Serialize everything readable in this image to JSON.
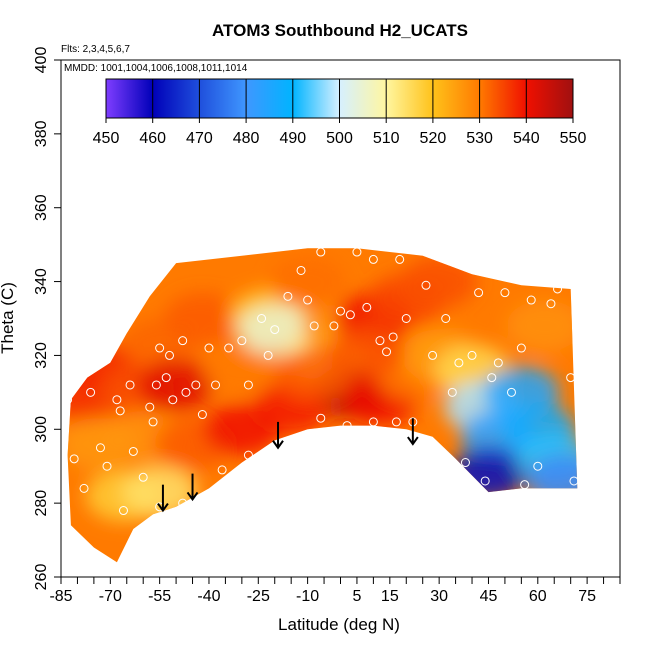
{
  "chart_data": {
    "type": "heatmap",
    "title": "ATOM3 Southbound H2_UCATS",
    "flights_note": "Flts: 2,3,4,5,6,7",
    "mmdd_note": "MMDD: 1001,1004,1006,1008,1011,1014",
    "xlabel": "Latitude (deg N)",
    "ylabel": "Theta (C)",
    "xlim": [
      -85,
      85
    ],
    "ylim": [
      260,
      400
    ],
    "x_ticks": [
      -85,
      -70,
      -55,
      -40,
      -25,
      -10,
      5,
      15,
      30,
      45,
      60,
      75
    ],
    "y_ticks": [
      260,
      280,
      300,
      320,
      340,
      360,
      380,
      400
    ],
    "colorbar": {
      "ticks": [
        450,
        460,
        470,
        480,
        490,
        500,
        510,
        520,
        530,
        540,
        550
      ],
      "range": [
        450,
        550
      ],
      "stops": [
        {
          "v": 450,
          "color": "#7f3dff"
        },
        {
          "v": 460,
          "color": "#0000b8"
        },
        {
          "v": 470,
          "color": "#1f4fdc"
        },
        {
          "v": 480,
          "color": "#3f97ff"
        },
        {
          "v": 490,
          "color": "#00b4ff"
        },
        {
          "v": 500,
          "color": "#d6f0ff"
        },
        {
          "v": 510,
          "color": "#fff6a0"
        },
        {
          "v": 520,
          "color": "#ffc21a"
        },
        {
          "v": 530,
          "color": "#ff7a00"
        },
        {
          "v": 540,
          "color": "#f01000"
        },
        {
          "v": 550,
          "color": "#a01010"
        }
      ]
    },
    "field_boundary": [
      [
        -82,
        308
      ],
      [
        -77,
        314
      ],
      [
        -70,
        318
      ],
      [
        -65,
        326
      ],
      [
        -58,
        336
      ],
      [
        -50,
        345
      ],
      [
        -30,
        347
      ],
      [
        -10,
        349
      ],
      [
        5,
        349
      ],
      [
        15,
        348
      ],
      [
        25,
        347
      ],
      [
        40,
        342
      ],
      [
        55,
        339
      ],
      [
        70,
        338
      ],
      [
        72,
        284
      ],
      [
        55,
        284
      ],
      [
        45,
        283
      ],
      [
        35,
        292
      ],
      [
        28,
        298
      ],
      [
        20,
        300
      ],
      [
        10,
        301
      ],
      [
        0,
        301
      ],
      [
        -10,
        300
      ],
      [
        -20,
        297
      ],
      [
        -30,
        291
      ],
      [
        -40,
        284
      ],
      [
        -50,
        279
      ],
      [
        -57,
        277
      ],
      [
        -63,
        273
      ],
      [
        -68,
        264
      ],
      [
        -75,
        268
      ],
      [
        -82,
        274
      ],
      [
        -83,
        293
      ]
    ],
    "field_samples": [
      {
        "lat": -78,
        "theta": 309,
        "value": 537
      },
      {
        "lat": -72,
        "theta": 316,
        "value": 538
      },
      {
        "lat": -62,
        "theta": 310,
        "value": 534
      },
      {
        "lat": -55,
        "theta": 323,
        "value": 532
      },
      {
        "lat": -50,
        "theta": 312,
        "value": 542
      },
      {
        "lat": -42,
        "theta": 330,
        "value": 533
      },
      {
        "lat": -30,
        "theta": 316,
        "value": 530
      },
      {
        "lat": -22,
        "theta": 331,
        "value": 519
      },
      {
        "lat": -20,
        "theta": 327,
        "value": 505
      },
      {
        "lat": -10,
        "theta": 340,
        "value": 531
      },
      {
        "lat": -5,
        "theta": 320,
        "value": 512
      },
      {
        "lat": 0,
        "theta": 327,
        "value": 527
      },
      {
        "lat": 3,
        "theta": 310,
        "value": 548
      },
      {
        "lat": 10,
        "theta": 330,
        "value": 540
      },
      {
        "lat": 12,
        "theta": 308,
        "value": 540
      },
      {
        "lat": 20,
        "theta": 335,
        "value": 535
      },
      {
        "lat": 22,
        "theta": 315,
        "value": 530
      },
      {
        "lat": 30,
        "theta": 340,
        "value": 534
      },
      {
        "lat": 30,
        "theta": 320,
        "value": 525
      },
      {
        "lat": 40,
        "theta": 316,
        "value": 516
      },
      {
        "lat": 43,
        "theta": 306,
        "value": 498
      },
      {
        "lat": 48,
        "theta": 298,
        "value": 483
      },
      {
        "lat": 45,
        "theta": 288,
        "value": 462
      },
      {
        "lat": 55,
        "theta": 310,
        "value": 485
      },
      {
        "lat": 60,
        "theta": 300,
        "value": 487
      },
      {
        "lat": 65,
        "theta": 292,
        "value": 492
      },
      {
        "lat": 68,
        "theta": 286,
        "value": 478
      },
      {
        "lat": 62,
        "theta": 328,
        "value": 527
      },
      {
        "lat": -60,
        "theta": 298,
        "value": 527
      },
      {
        "lat": -74,
        "theta": 296,
        "value": 526
      },
      {
        "lat": -66,
        "theta": 282,
        "value": 518
      },
      {
        "lat": -55,
        "theta": 283,
        "value": 514
      },
      {
        "lat": -45,
        "theta": 296,
        "value": 533
      },
      {
        "lat": -30,
        "theta": 300,
        "value": 540
      },
      {
        "lat": -15,
        "theta": 306,
        "value": 539
      },
      {
        "lat": -8,
        "theta": 315,
        "value": 533
      },
      {
        "lat": 8,
        "theta": 321,
        "value": 534
      }
    ],
    "observations": [
      {
        "lat": -83,
        "theta": 308
      },
      {
        "lat": -81,
        "theta": 292
      },
      {
        "lat": -78,
        "theta": 284
      },
      {
        "lat": -76,
        "theta": 310
      },
      {
        "lat": -73,
        "theta": 295
      },
      {
        "lat": -71,
        "theta": 290
      },
      {
        "lat": -68,
        "theta": 308
      },
      {
        "lat": -67,
        "theta": 305
      },
      {
        "lat": -64,
        "theta": 312
      },
      {
        "lat": -63,
        "theta": 294
      },
      {
        "lat": -60,
        "theta": 287
      },
      {
        "lat": -58,
        "theta": 306
      },
      {
        "lat": -57,
        "theta": 302
      },
      {
        "lat": -56,
        "theta": 312
      },
      {
        "lat": -55,
        "theta": 322
      },
      {
        "lat": -53,
        "theta": 314
      },
      {
        "lat": -52,
        "theta": 320
      },
      {
        "lat": -51,
        "theta": 308
      },
      {
        "lat": -48,
        "theta": 324
      },
      {
        "lat": -47,
        "theta": 310
      },
      {
        "lat": -44,
        "theta": 312
      },
      {
        "lat": -42,
        "theta": 304
      },
      {
        "lat": -40,
        "theta": 322
      },
      {
        "lat": -38,
        "theta": 312
      },
      {
        "lat": -34,
        "theta": 322
      },
      {
        "lat": -30,
        "theta": 324
      },
      {
        "lat": -28,
        "theta": 312
      },
      {
        "lat": -24,
        "theta": 330
      },
      {
        "lat": -22,
        "theta": 320
      },
      {
        "lat": -20,
        "theta": 327
      },
      {
        "lat": -16,
        "theta": 336
      },
      {
        "lat": -12,
        "theta": 343
      },
      {
        "lat": -10,
        "theta": 335
      },
      {
        "lat": -8,
        "theta": 328
      },
      {
        "lat": -6,
        "theta": 348
      },
      {
        "lat": -2,
        "theta": 328
      },
      {
        "lat": 0,
        "theta": 332
      },
      {
        "lat": 3,
        "theta": 331
      },
      {
        "lat": 5,
        "theta": 348
      },
      {
        "lat": 8,
        "theta": 333
      },
      {
        "lat": 10,
        "theta": 346
      },
      {
        "lat": 12,
        "theta": 324
      },
      {
        "lat": 14,
        "theta": 321
      },
      {
        "lat": 16,
        "theta": 325
      },
      {
        "lat": 18,
        "theta": 346
      },
      {
        "lat": 20,
        "theta": 330
      },
      {
        "lat": 22,
        "theta": 302
      },
      {
        "lat": 26,
        "theta": 339
      },
      {
        "lat": 28,
        "theta": 320
      },
      {
        "lat": 32,
        "theta": 330
      },
      {
        "lat": 34,
        "theta": 310
      },
      {
        "lat": 36,
        "theta": 318
      },
      {
        "lat": 38,
        "theta": 291
      },
      {
        "lat": 40,
        "theta": 320
      },
      {
        "lat": 42,
        "theta": 337
      },
      {
        "lat": 44,
        "theta": 286
      },
      {
        "lat": 46,
        "theta": 314
      },
      {
        "lat": 48,
        "theta": 318
      },
      {
        "lat": 50,
        "theta": 337
      },
      {
        "lat": 52,
        "theta": 310
      },
      {
        "lat": 55,
        "theta": 322
      },
      {
        "lat": 56,
        "theta": 285
      },
      {
        "lat": 58,
        "theta": 335
      },
      {
        "lat": 60,
        "theta": 290
      },
      {
        "lat": 64,
        "theta": 334
      },
      {
        "lat": 66,
        "theta": 338
      },
      {
        "lat": 70,
        "theta": 314
      },
      {
        "lat": 71,
        "theta": 286
      },
      {
        "lat": -6,
        "theta": 303
      },
      {
        "lat": 2,
        "theta": 301
      },
      {
        "lat": 10,
        "theta": 302
      },
      {
        "lat": 17,
        "theta": 302
      },
      {
        "lat": -28,
        "theta": 293
      },
      {
        "lat": -36,
        "theta": 289
      },
      {
        "lat": -48,
        "theta": 280
      },
      {
        "lat": -55,
        "theta": 279
      },
      {
        "lat": -66,
        "theta": 278
      }
    ],
    "arrows": [
      {
        "lat": -54,
        "theta_top": 285,
        "theta_tip": 278
      },
      {
        "lat": -45,
        "theta_top": 288,
        "theta_tip": 281
      },
      {
        "lat": -19,
        "theta_top": 302,
        "theta_tip": 295
      },
      {
        "lat": 22,
        "theta_top": 303,
        "theta_tip": 296
      }
    ]
  }
}
